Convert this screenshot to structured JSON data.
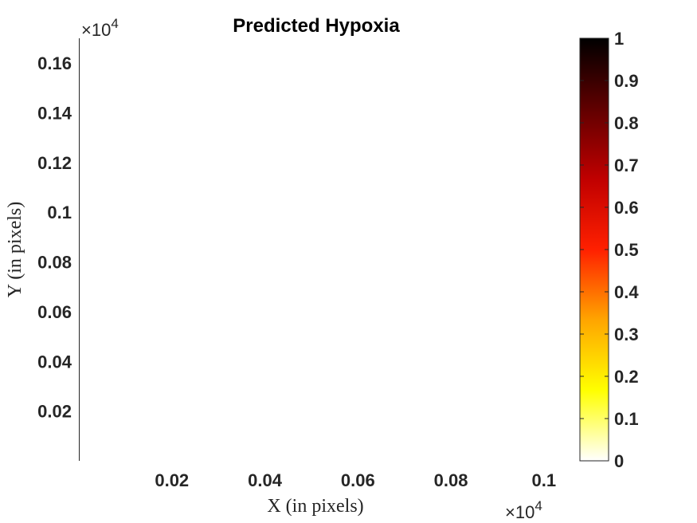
{
  "chart_data": {
    "type": "heatmap",
    "title": "Predicted Hypoxia",
    "xlabel": "X (in pixels)",
    "ylabel": "Y (in pixels)",
    "x_ticks": [
      0.02,
      0.04,
      0.06,
      0.08,
      0.1
    ],
    "x_tick_labels": [
      "0.02",
      "0.04",
      "0.06",
      "0.08",
      "0.1"
    ],
    "y_ticks": [
      0.02,
      0.04,
      0.06,
      0.08,
      0.1,
      0.12,
      0.14,
      0.16
    ],
    "y_tick_labels": [
      "0.02",
      "0.04",
      "0.06",
      "0.08",
      "0.1",
      "0.12",
      "0.14",
      "0.16"
    ],
    "xlim": [
      0,
      0.105
    ],
    "ylim": [
      0,
      0.17
    ],
    "axis_multiplier": "×10",
    "axis_multiplier_exponent": "4",
    "values": [],
    "grid": false,
    "colormap": "hot (reversed)",
    "colorbar": {
      "range": [
        0,
        1
      ],
      "ticks": [
        0,
        0.1,
        0.2,
        0.3,
        0.4,
        0.5,
        0.6,
        0.7,
        0.8,
        0.9,
        1
      ],
      "tick_labels": [
        "0",
        "0.1",
        "0.2",
        "0.3",
        "0.4",
        "0.5",
        "0.6",
        "0.7",
        "0.8",
        "0.9",
        "1"
      ],
      "colors": [
        "#ffffff",
        "#ffff00",
        "#ffa500",
        "#ff2000",
        "#c00000",
        "#600000",
        "#000000"
      ],
      "placement": "right"
    }
  }
}
